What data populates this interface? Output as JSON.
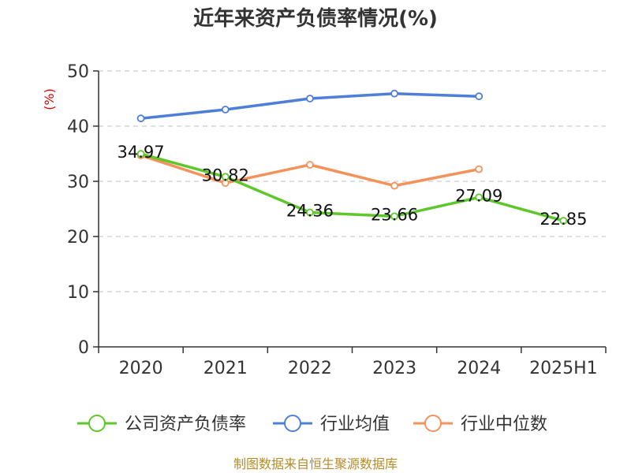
{
  "chart_data": {
    "type": "line",
    "title": "近年来资产负债率情况(%)",
    "ylabel": "(%)",
    "categories": [
      "2020",
      "2021",
      "2022",
      "2023",
      "2024",
      "2025H1"
    ],
    "ylim": [
      0,
      50
    ],
    "yticks": [
      0,
      10,
      20,
      30,
      40,
      50
    ],
    "grid": true,
    "legend_position": "bottom",
    "series": [
      {
        "name": "公司资产负债率",
        "color": "#5ec72b",
        "show_labels": true,
        "values": [
          34.97,
          30.82,
          24.36,
          23.66,
          27.09,
          22.85
        ],
        "labels": [
          "34.97",
          "30.82",
          "24.36",
          "23.66",
          "27.09",
          "22.85"
        ]
      },
      {
        "name": "行业均值",
        "color": "#4e7fd8",
        "show_labels": false,
        "values": [
          41.4,
          43.0,
          45.0,
          45.9,
          45.4,
          null
        ]
      },
      {
        "name": "行业中位数",
        "color": "#f4925c",
        "show_labels": false,
        "values": [
          34.7,
          29.7,
          33.0,
          29.2,
          32.2,
          null
        ]
      }
    ]
  },
  "source": "制图数据来自恒生聚源数据库"
}
